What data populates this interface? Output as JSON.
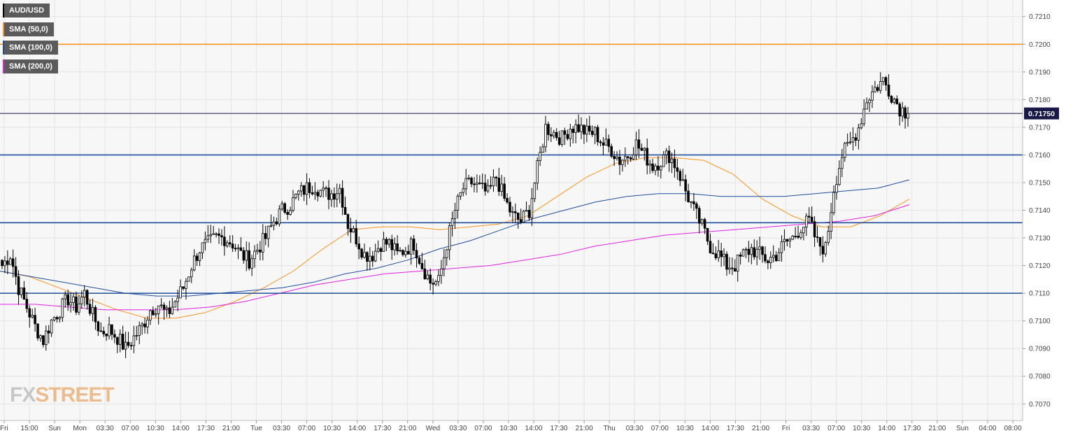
{
  "legend": [
    {
      "label": "AUD/USD",
      "color": "#000000"
    },
    {
      "label": "SMA (50,0)",
      "color": "#f7931e"
    },
    {
      "label": "SMA (100,0)",
      "color": "#1f4e9c"
    },
    {
      "label": "SMA (200,0)",
      "color": "#e020e0"
    }
  ],
  "logo": {
    "fx": "FX",
    "street": "STREET"
  },
  "colors": {
    "background": "#f7f7f7",
    "grid": "#e4e4e4",
    "up": "#ffffff",
    "down": "#000000",
    "sma50": "#f7931e",
    "sma100": "#1f4e9c",
    "sma200": "#e020e0",
    "resistance": "#f7931e",
    "support": "#1f4e9c",
    "last_price_box": "#1a1a4a"
  },
  "chart_data": {
    "type": "candlestick",
    "symbol": "AUD/USD",
    "ylim": [
      0.7064,
      0.7216
    ],
    "y_ticks": [
      "0.7070",
      "0.7080",
      "0.7090",
      "0.7100",
      "0.7110",
      "0.7120",
      "0.7130",
      "0.7140",
      "0.7150",
      "0.7160",
      "0.7170",
      "0.7180",
      "0.7190",
      "0.7200",
      "0.7210"
    ],
    "x_ticks": [
      "Fri",
      "15:00",
      "Sun",
      "Mon",
      "03:30",
      "07:00",
      "10:30",
      "14:00",
      "17:30",
      "21:00",
      "Tue",
      "03:30",
      "07:00",
      "10:30",
      "14:00",
      "17:30",
      "21:00",
      "Wed",
      "03:30",
      "07:00",
      "10:30",
      "14:00",
      "17:30",
      "21:00",
      "Thu",
      "03:30",
      "07:00",
      "10:30",
      "14:00",
      "17:30",
      "21:00",
      "Fri",
      "03:30",
      "07:00",
      "10:30",
      "14:00",
      "17:30",
      "21:00",
      "Sun",
      "04:00",
      "08:00"
    ],
    "last_price": "0.71750",
    "horizontal_levels": [
      {
        "value": 0.72,
        "kind": "resistance"
      },
      {
        "value": 0.716,
        "kind": "support"
      },
      {
        "value": 0.71355,
        "kind": "support"
      },
      {
        "value": 0.711,
        "kind": "support"
      }
    ],
    "close_path": [
      0.712,
      0.7124,
      0.7112,
      0.7105,
      0.7098,
      0.7093,
      0.71,
      0.7104,
      0.7108,
      0.7105,
      0.711,
      0.7102,
      0.7096,
      0.7097,
      0.7094,
      0.709,
      0.7094,
      0.7098,
      0.7104,
      0.7106,
      0.7102,
      0.7107,
      0.7112,
      0.712,
      0.7126,
      0.7128,
      0.713,
      0.713,
      0.7128,
      0.7124,
      0.7122,
      0.7126,
      0.713,
      0.7136,
      0.714,
      0.7142,
      0.7146,
      0.7148,
      0.7149,
      0.7146,
      0.7146,
      0.7148,
      0.7135,
      0.713,
      0.7124,
      0.7124,
      0.7128,
      0.7128,
      0.7124,
      0.7126,
      0.7128,
      0.712,
      0.7114,
      0.7114,
      0.7128,
      0.714,
      0.7148,
      0.715,
      0.7148,
      0.7146,
      0.7152,
      0.7144,
      0.7138,
      0.7136,
      0.714,
      0.7155,
      0.717,
      0.7168,
      0.7166,
      0.717,
      0.717,
      0.7168,
      0.7168,
      0.7164,
      0.7162,
      0.7158,
      0.716,
      0.7164,
      0.716,
      0.7156,
      0.7158,
      0.716,
      0.7155,
      0.7147,
      0.714,
      0.7134,
      0.7127,
      0.7124,
      0.712,
      0.712,
      0.7124,
      0.7126,
      0.7124,
      0.7122,
      0.7124,
      0.7128,
      0.713,
      0.7134,
      0.7136,
      0.7128,
      0.7126,
      0.7148,
      0.716,
      0.7164,
      0.717,
      0.718,
      0.7184,
      0.7187,
      0.7182,
      0.7177,
      0.7175
    ],
    "series": [
      {
        "name": "SMA (50,0)",
        "values": [
          0.7118,
          0.7116,
          0.7112,
          0.7108,
          0.7104,
          0.7101,
          0.7101,
          0.7103,
          0.7107,
          0.7112,
          0.7118,
          0.7126,
          0.7133,
          0.7134,
          0.7134,
          0.7133,
          0.7134,
          0.7135,
          0.7138,
          0.7145,
          0.7152,
          0.7157,
          0.7159,
          0.7159,
          0.7158,
          0.7153,
          0.7144,
          0.7138,
          0.7134,
          0.7134,
          0.7138,
          0.7144
        ]
      },
      {
        "name": "SMA (100,0)",
        "values": [
          0.7118,
          0.7116,
          0.7114,
          0.7112,
          0.711,
          0.7109,
          0.7109,
          0.711,
          0.7111,
          0.7112,
          0.7114,
          0.7117,
          0.7119,
          0.7122,
          0.7126,
          0.7129,
          0.7133,
          0.7137,
          0.714,
          0.7143,
          0.7145,
          0.7146,
          0.7146,
          0.7145,
          0.7145,
          0.7145,
          0.7146,
          0.7147,
          0.7148,
          0.7151
        ]
      },
      {
        "name": "SMA (200,0)",
        "values": [
          0.7106,
          0.7106,
          0.7105,
          0.7104,
          0.7104,
          0.7104,
          0.7105,
          0.7107,
          0.711,
          0.7113,
          0.7115,
          0.7117,
          0.7118,
          0.7119,
          0.712,
          0.7122,
          0.7124,
          0.7127,
          0.7129,
          0.7131,
          0.7132,
          0.7133,
          0.7134,
          0.7135,
          0.7136,
          0.7138,
          0.7142
        ]
      }
    ]
  }
}
